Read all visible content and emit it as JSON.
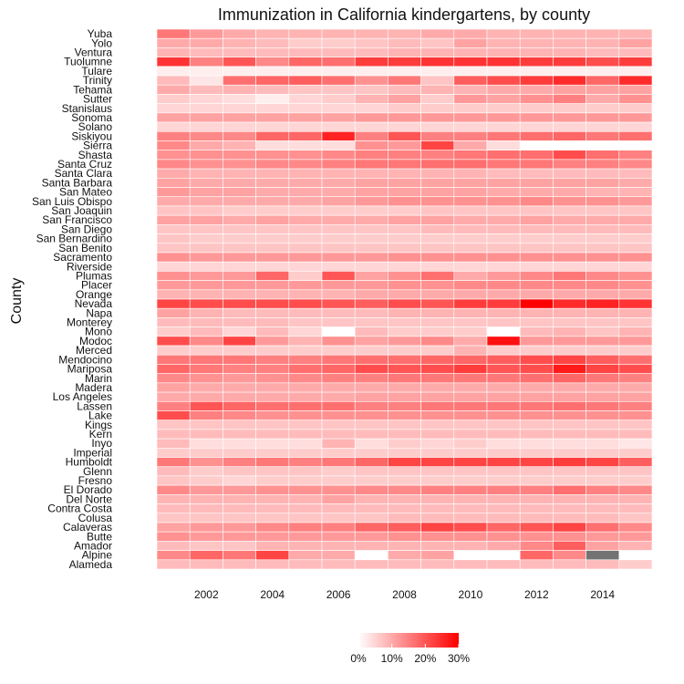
{
  "chart_data": {
    "type": "heatmap",
    "title": "Immunization in California kindergartens, by county",
    "xlabel": "",
    "ylabel": "County",
    "x": [
      2001,
      2002,
      2003,
      2004,
      2005,
      2006,
      2007,
      2008,
      2009,
      2010,
      2011,
      2012,
      2013,
      2014,
      2015
    ],
    "x_tick_labels": [
      "2002",
      "2004",
      "2006",
      "2008",
      "2010",
      "2012",
      "2014"
    ],
    "x_tick_values": [
      2002,
      2004,
      2006,
      2008,
      2010,
      2012,
      2014
    ],
    "counties": [
      "Yuba",
      "Yolo",
      "Ventura",
      "Tuolumne",
      "Tulare",
      "Trinity",
      "Tehama",
      "Sutter",
      "Stanislaus",
      "Sonoma",
      "Solano",
      "Siskiyou",
      "Sierra",
      "Shasta",
      "Santa Cruz",
      "Santa Clara",
      "Santa Barbara",
      "San Mateo",
      "San Luis Obispo",
      "San Joaquin",
      "San Francisco",
      "San Diego",
      "San Bernardino",
      "San Benito",
      "Sacramento",
      "Riverside",
      "Plumas",
      "Placer",
      "Orange",
      "Nevada",
      "Napa",
      "Monterey",
      "Mono",
      "Modoc",
      "Merced",
      "Mendocino",
      "Mariposa",
      "Marin",
      "Madera",
      "Los Angeles",
      "Lassen",
      "Lake",
      "Kings",
      "Kern",
      "Inyo",
      "Imperial",
      "Humboldt",
      "Glenn",
      "Fresno",
      "El Dorado",
      "Del Norte",
      "Contra Costa",
      "Colusa",
      "Calaveras",
      "Butte",
      "Amador",
      "Alpine",
      "Alameda"
    ],
    "values": [
      [
        16,
        12,
        10,
        9,
        9,
        9,
        9,
        9,
        10,
        10,
        9,
        9,
        9,
        9,
        9
      ],
      [
        10,
        10,
        9,
        8,
        6,
        6,
        7,
        8,
        7,
        11,
        9,
        9,
        9,
        9,
        11
      ],
      [
        9,
        8,
        8,
        8,
        8,
        8,
        8,
        9,
        9,
        9,
        9,
        9,
        9,
        8,
        8
      ],
      [
        24,
        15,
        20,
        14,
        18,
        17,
        23,
        23,
        24,
        24,
        24,
        23,
        23,
        21,
        23
      ],
      [
        2,
        2,
        2,
        2,
        2,
        2,
        2,
        2,
        2,
        2,
        2,
        2,
        2,
        2,
        2
      ],
      [
        8,
        3,
        17,
        18,
        19,
        17,
        13,
        16,
        7,
        19,
        21,
        23,
        25,
        18,
        25
      ],
      [
        10,
        8,
        9,
        8,
        7,
        7,
        7,
        8,
        9,
        9,
        10,
        10,
        11,
        11,
        11
      ],
      [
        6,
        5,
        4,
        2,
        5,
        6,
        9,
        11,
        6,
        12,
        11,
        13,
        15,
        10,
        13
      ],
      [
        5,
        5,
        5,
        5,
        5,
        5,
        5,
        6,
        6,
        6,
        6,
        6,
        6,
        6,
        6
      ],
      [
        11,
        11,
        11,
        11,
        11,
        11,
        12,
        12,
        12,
        12,
        12,
        12,
        12,
        12,
        12
      ],
      [
        5,
        5,
        5,
        5,
        5,
        5,
        5,
        5,
        5,
        5,
        5,
        5,
        5,
        5,
        5
      ],
      [
        15,
        14,
        14,
        18,
        18,
        26,
        15,
        20,
        15,
        15,
        16,
        17,
        18,
        16,
        17
      ],
      [
        14,
        10,
        9,
        4,
        4,
        4,
        13,
        12,
        22,
        10,
        4,
        0,
        0,
        0,
        0
      ],
      [
        13,
        13,
        13,
        13,
        13,
        14,
        15,
        15,
        15,
        16,
        17,
        17,
        21,
        17,
        15
      ],
      [
        14,
        13,
        13,
        14,
        14,
        15,
        16,
        16,
        17,
        17,
        16,
        16,
        15,
        15,
        14
      ],
      [
        10,
        9,
        9,
        9,
        9,
        9,
        9,
        9,
        9,
        9,
        8,
        8,
        8,
        8,
        8
      ],
      [
        11,
        10,
        10,
        10,
        10,
        10,
        11,
        11,
        11,
        11,
        11,
        11,
        11,
        11,
        10
      ],
      [
        12,
        11,
        11,
        10,
        10,
        10,
        11,
        11,
        11,
        11,
        10,
        10,
        10,
        9,
        9
      ],
      [
        10,
        10,
        10,
        10,
        10,
        11,
        12,
        13,
        13,
        13,
        13,
        14,
        13,
        13,
        12
      ],
      [
        7,
        7,
        6,
        6,
        6,
        6,
        6,
        6,
        7,
        7,
        7,
        7,
        7,
        7,
        7
      ],
      [
        11,
        11,
        10,
        11,
        10,
        10,
        10,
        11,
        11,
        10,
        10,
        11,
        10,
        10,
        10
      ],
      [
        7,
        7,
        7,
        7,
        7,
        7,
        7,
        7,
        8,
        8,
        8,
        8,
        8,
        8,
        8
      ],
      [
        7,
        6,
        6,
        6,
        6,
        6,
        6,
        6,
        6,
        6,
        6,
        6,
        6,
        6,
        6
      ],
      [
        7,
        7,
        7,
        7,
        7,
        7,
        7,
        7,
        7,
        7,
        7,
        7,
        7,
        7,
        7
      ],
      [
        13,
        12,
        12,
        12,
        12,
        12,
        12,
        13,
        13,
        13,
        13,
        13,
        13,
        13,
        13
      ],
      [
        5,
        5,
        5,
        5,
        5,
        5,
        5,
        5,
        5,
        5,
        5,
        5,
        5,
        5,
        5
      ],
      [
        13,
        12,
        12,
        18,
        6,
        20,
        11,
        13,
        17,
        10,
        12,
        14,
        16,
        14,
        13
      ],
      [
        12,
        12,
        12,
        12,
        12,
        12,
        12,
        13,
        13,
        14,
        14,
        14,
        14,
        14,
        13
      ],
      [
        9,
        9,
        9,
        9,
        9,
        9,
        10,
        10,
        10,
        10,
        10,
        10,
        10,
        10,
        10
      ],
      [
        22,
        21,
        21,
        21,
        21,
        20,
        19,
        21,
        20,
        23,
        23,
        30,
        25,
        26,
        24
      ],
      [
        11,
        9,
        8,
        8,
        8,
        8,
        8,
        9,
        9,
        9,
        9,
        9,
        9,
        9,
        9
      ],
      [
        8,
        8,
        8,
        8,
        7,
        7,
        7,
        7,
        7,
        7,
        7,
        7,
        7,
        7,
        7
      ],
      [
        6,
        8,
        5,
        8,
        5,
        0,
        8,
        6,
        6,
        6,
        0,
        8,
        9,
        7,
        9
      ],
      [
        21,
        14,
        22,
        12,
        9,
        13,
        11,
        12,
        14,
        10,
        28,
        12,
        12,
        12,
        12
      ],
      [
        6,
        6,
        6,
        6,
        6,
        6,
        6,
        6,
        6,
        9,
        6,
        6,
        6,
        6,
        6
      ],
      [
        16,
        16,
        16,
        15,
        15,
        16,
        17,
        17,
        18,
        18,
        19,
        21,
        22,
        19,
        17
      ],
      [
        18,
        16,
        15,
        15,
        17,
        18,
        21,
        20,
        21,
        23,
        20,
        21,
        27,
        22,
        21
      ],
      [
        14,
        13,
        12,
        13,
        14,
        15,
        15,
        16,
        16,
        16,
        16,
        17,
        18,
        16,
        15
      ],
      [
        11,
        10,
        10,
        10,
        10,
        10,
        10,
        10,
        10,
        10,
        10,
        10,
        10,
        10,
        10
      ],
      [
        10,
        10,
        10,
        10,
        10,
        10,
        11,
        11,
        11,
        11,
        11,
        11,
        11,
        11,
        11
      ],
      [
        15,
        20,
        18,
        17,
        17,
        17,
        15,
        15,
        16,
        16,
        16,
        16,
        17,
        16,
        15
      ],
      [
        21,
        15,
        14,
        13,
        13,
        13,
        13,
        13,
        13,
        13,
        13,
        13,
        13,
        13,
        13
      ],
      [
        7,
        7,
        7,
        7,
        7,
        7,
        7,
        7,
        7,
        7,
        7,
        7,
        7,
        7,
        7
      ],
      [
        8,
        8,
        8,
        8,
        8,
        8,
        8,
        8,
        8,
        8,
        8,
        8,
        8,
        8,
        8
      ],
      [
        8,
        4,
        4,
        4,
        4,
        9,
        4,
        6,
        5,
        6,
        4,
        4,
        4,
        4,
        3
      ],
      [
        6,
        6,
        6,
        6,
        6,
        6,
        6,
        6,
        6,
        6,
        6,
        6,
        6,
        6,
        6
      ],
      [
        16,
        13,
        15,
        16,
        15,
        16,
        18,
        22,
        22,
        22,
        22,
        22,
        23,
        22,
        19
      ],
      [
        8,
        6,
        7,
        7,
        7,
        6,
        7,
        7,
        7,
        7,
        7,
        7,
        7,
        7,
        7
      ],
      [
        7,
        6,
        5,
        6,
        6,
        6,
        6,
        6,
        6,
        6,
        6,
        6,
        6,
        6,
        6
      ],
      [
        14,
        12,
        12,
        13,
        13,
        13,
        14,
        14,
        15,
        15,
        15,
        15,
        17,
        15,
        14
      ],
      [
        9,
        9,
        9,
        9,
        9,
        11,
        9,
        9,
        9,
        9,
        9,
        9,
        9,
        9,
        9
      ],
      [
        8,
        8,
        8,
        8,
        8,
        8,
        8,
        8,
        8,
        8,
        8,
        8,
        8,
        8,
        8
      ],
      [
        7,
        7,
        7,
        7,
        7,
        7,
        7,
        8,
        8,
        8,
        8,
        8,
        8,
        8,
        7
      ],
      [
        11,
        12,
        12,
        14,
        15,
        15,
        18,
        19,
        22,
        21,
        18,
        20,
        22,
        17,
        14
      ],
      [
        13,
        12,
        12,
        12,
        12,
        12,
        12,
        13,
        13,
        13,
        13,
        13,
        13,
        12,
        12
      ],
      [
        8,
        7,
        7,
        9,
        9,
        9,
        9,
        9,
        9,
        9,
        10,
        14,
        19,
        11,
        9
      ],
      [
        14,
        18,
        16,
        22,
        10,
        10,
        0,
        10,
        11,
        0,
        0,
        18,
        14,
        null,
        0
      ],
      [
        8,
        8,
        8,
        8,
        8,
        8,
        8,
        8,
        8,
        8,
        8,
        8,
        8,
        8,
        6
      ]
    ],
    "missing_color": "#737373",
    "color_low": "#ffffff",
    "color_high": "#ff0000",
    "value_range": [
      0,
      30
    ],
    "legend": {
      "position": "bottom",
      "labels": [
        "0%",
        "10%",
        "20%",
        "30%"
      ],
      "values": [
        0,
        10,
        20,
        30
      ]
    },
    "grid": false
  }
}
